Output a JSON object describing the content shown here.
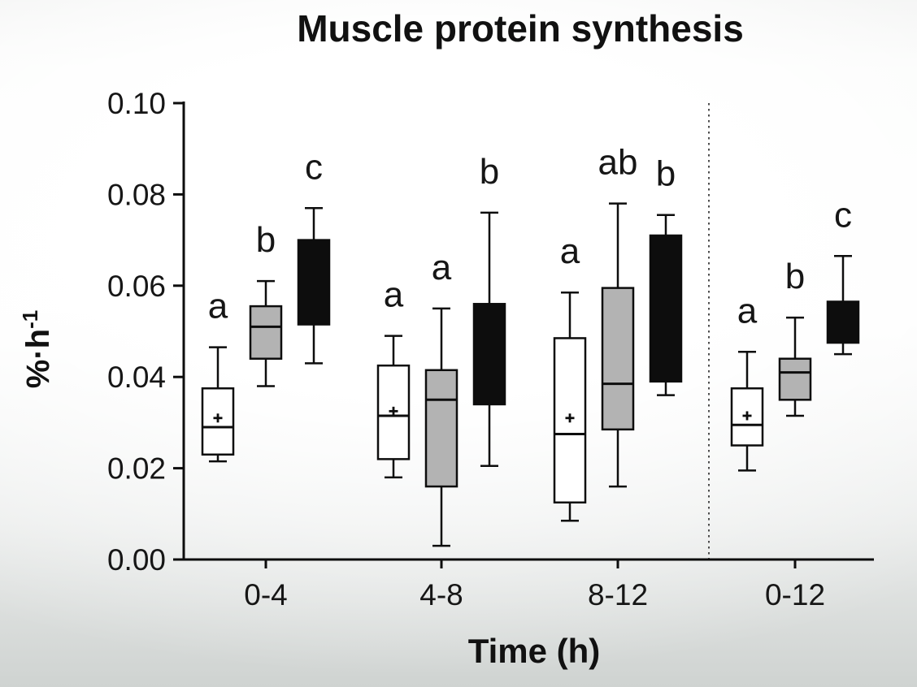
{
  "title": "Muscle protein synthesis",
  "chart_data": {
    "type": "boxplot",
    "title": "Muscle protein synthesis",
    "xlabel": "Time (h)",
    "ylabel": "%·h⁻¹",
    "ylabel_base": "%·h",
    "ylabel_exponent": "-1",
    "ylim": [
      0.0,
      0.1
    ],
    "yticks": [
      {
        "value": 0.0,
        "label": "0.00"
      },
      {
        "value": 0.02,
        "label": "0.02"
      },
      {
        "value": 0.04,
        "label": "0.04"
      },
      {
        "value": 0.06,
        "label": "0.06"
      },
      {
        "value": 0.08,
        "label": "0.08"
      },
      {
        "value": 0.1,
        "label": "0.10"
      }
    ],
    "categories": [
      "0-4",
      "4-8",
      "8-12",
      "0-12"
    ],
    "separator_line": {
      "between": [
        "8-12",
        "0-12"
      ],
      "style": "dashed"
    },
    "grid": false,
    "legend": "none",
    "series": [
      {
        "name": "white",
        "fill": "#ffffff",
        "boxes": [
          {
            "category": "0-4",
            "letter": "a",
            "whisker_low": 0.0215,
            "q1": 0.023,
            "median": 0.029,
            "q3": 0.0375,
            "whisker_high": 0.0465,
            "mean": 0.031
          },
          {
            "category": "4-8",
            "letter": "a",
            "whisker_low": 0.018,
            "q1": 0.022,
            "median": 0.0315,
            "q3": 0.0425,
            "whisker_high": 0.049,
            "mean": 0.0325
          },
          {
            "category": "8-12",
            "letter": "a",
            "whisker_low": 0.0085,
            "q1": 0.0125,
            "median": 0.0275,
            "q3": 0.0485,
            "whisker_high": 0.0585,
            "mean": 0.031
          },
          {
            "category": "0-12",
            "letter": "a",
            "whisker_low": 0.0195,
            "q1": 0.025,
            "median": 0.0295,
            "q3": 0.0375,
            "whisker_high": 0.0455,
            "mean": 0.0315
          }
        ]
      },
      {
        "name": "gray",
        "fill": "#b3b3b3",
        "boxes": [
          {
            "category": "0-4",
            "letter": "b",
            "whisker_low": 0.038,
            "q1": 0.044,
            "median": 0.051,
            "q3": 0.0555,
            "whisker_high": 0.061,
            "mean": null
          },
          {
            "category": "4-8",
            "letter": "a",
            "whisker_low": 0.003,
            "q1": 0.016,
            "median": 0.035,
            "q3": 0.0415,
            "whisker_high": 0.055,
            "mean": null
          },
          {
            "category": "8-12",
            "letter": "ab",
            "whisker_low": 0.016,
            "q1": 0.0285,
            "median": 0.0385,
            "q3": 0.0595,
            "whisker_high": 0.078,
            "mean": null
          },
          {
            "category": "0-12",
            "letter": "b",
            "whisker_low": 0.0315,
            "q1": 0.035,
            "median": 0.041,
            "q3": 0.044,
            "whisker_high": 0.053,
            "mean": null
          }
        ]
      },
      {
        "name": "black",
        "fill": "#0d0d0d",
        "boxes": [
          {
            "category": "0-4",
            "letter": "c",
            "whisker_low": 0.043,
            "q1": 0.0515,
            "median": null,
            "q3": 0.07,
            "whisker_high": 0.077,
            "mean": null
          },
          {
            "category": "4-8",
            "letter": "b",
            "whisker_low": 0.0205,
            "q1": 0.034,
            "median": null,
            "q3": 0.056,
            "whisker_high": 0.076,
            "mean": null
          },
          {
            "category": "8-12",
            "letter": "b",
            "whisker_low": 0.036,
            "q1": 0.039,
            "median": null,
            "q3": 0.071,
            "whisker_high": 0.0755,
            "mean": null
          },
          {
            "category": "0-12",
            "letter": "c",
            "whisker_low": 0.045,
            "q1": 0.0475,
            "median": null,
            "q3": 0.0565,
            "whisker_high": 0.0665,
            "mean": null
          }
        ]
      }
    ],
    "colors": {
      "ink": "#0d0d0d",
      "box_stroke": "#0d0d0d",
      "separator": "#3a3a3a",
      "white_fill": "#ffffff",
      "gray_fill": "#b3b3b3",
      "black_fill": "#0d0d0d"
    }
  }
}
